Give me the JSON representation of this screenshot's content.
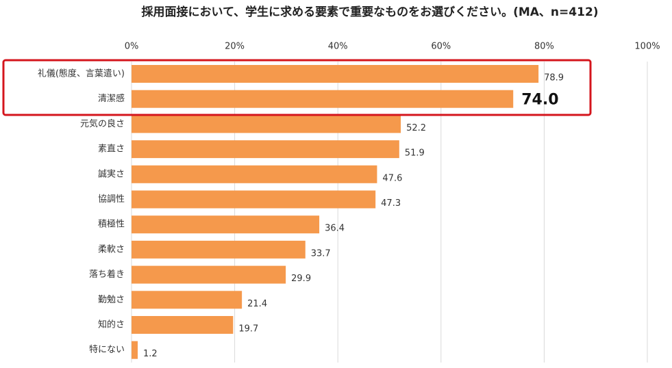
{
  "chart_data": {
    "type": "hbar",
    "title": "採用面接において、学生に求める要素で重要なものをお選びください。(MA、n=412)",
    "categories": [
      "礼儀(態度、言葉遣い)",
      "清潔感",
      "元気の良さ",
      "素直さ",
      "誠実さ",
      "協調性",
      "積極性",
      "柔軟さ",
      "落ち着き",
      "勤勉さ",
      "知的さ",
      "特にない"
    ],
    "values": [
      78.9,
      74.0,
      52.2,
      51.9,
      47.6,
      47.3,
      36.4,
      33.7,
      29.9,
      21.4,
      19.7,
      1.2
    ],
    "value_labels": [
      "78.9",
      "74.0",
      "52.2",
      "51.9",
      "47.6",
      "47.3",
      "36.4",
      "33.7",
      "29.9",
      "21.4",
      "19.7",
      "1.2"
    ],
    "color": "#f5994c",
    "xlim": [
      0,
      100
    ],
    "xticks": [
      {
        "value": 0,
        "label": "0%"
      },
      {
        "value": 20,
        "label": "20%"
      },
      {
        "value": 40,
        "label": "40%"
      },
      {
        "value": 60,
        "label": "60%"
      },
      {
        "value": 80,
        "label": "80%"
      },
      {
        "value": 100,
        "label": "100%"
      }
    ],
    "grid": true
  }
}
